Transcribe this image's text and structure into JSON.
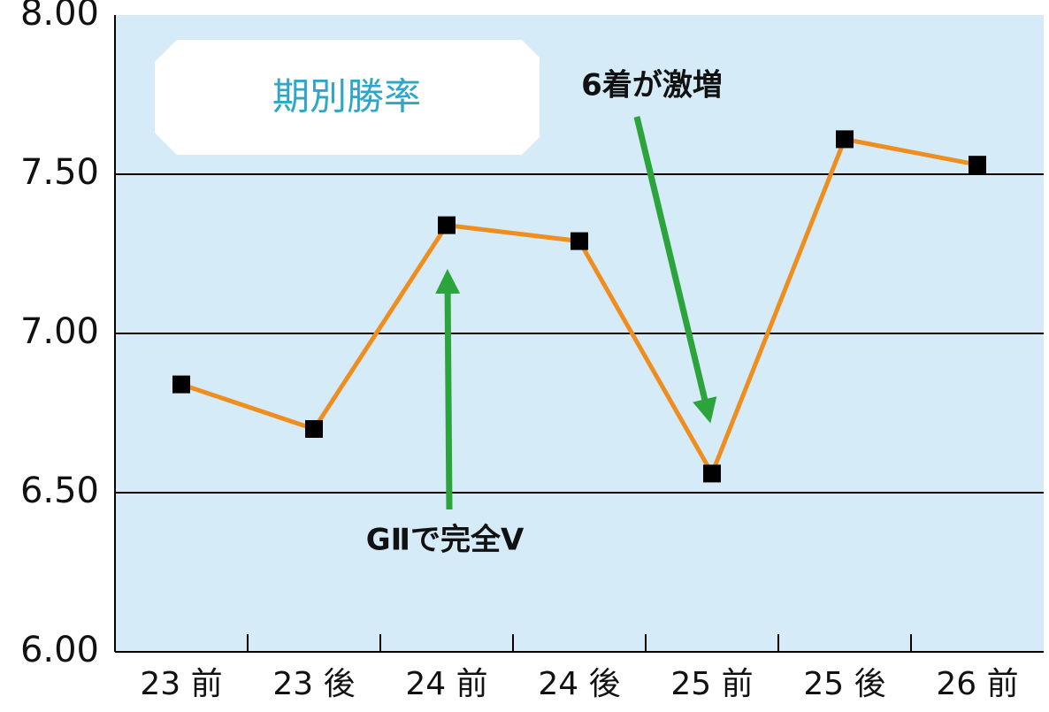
{
  "chart_data": {
    "type": "line",
    "title": "期別勝率",
    "annotations": [
      "6着が激増",
      "GⅡで完全V"
    ],
    "categories": [
      "23 前",
      "23 後",
      "24 前",
      "24 後",
      "25 前",
      "25 後",
      "26 前"
    ],
    "series": [
      {
        "color": "#ee8e1f",
        "marker_color": "#000000",
        "values": [
          6.84,
          6.7,
          7.34,
          7.29,
          6.56,
          7.61,
          7.53
        ]
      }
    ],
    "ylim": [
      6,
      8
    ],
    "yticks": [
      {
        "value": 6,
        "label": "6.00"
      },
      {
        "value": 6.5,
        "label": "6.50"
      },
      {
        "value": 7,
        "label": "7.00"
      },
      {
        "value": 7.5,
        "label": "7.50"
      },
      {
        "value": 8,
        "label": "8.00"
      }
    ],
    "grid": true
  }
}
